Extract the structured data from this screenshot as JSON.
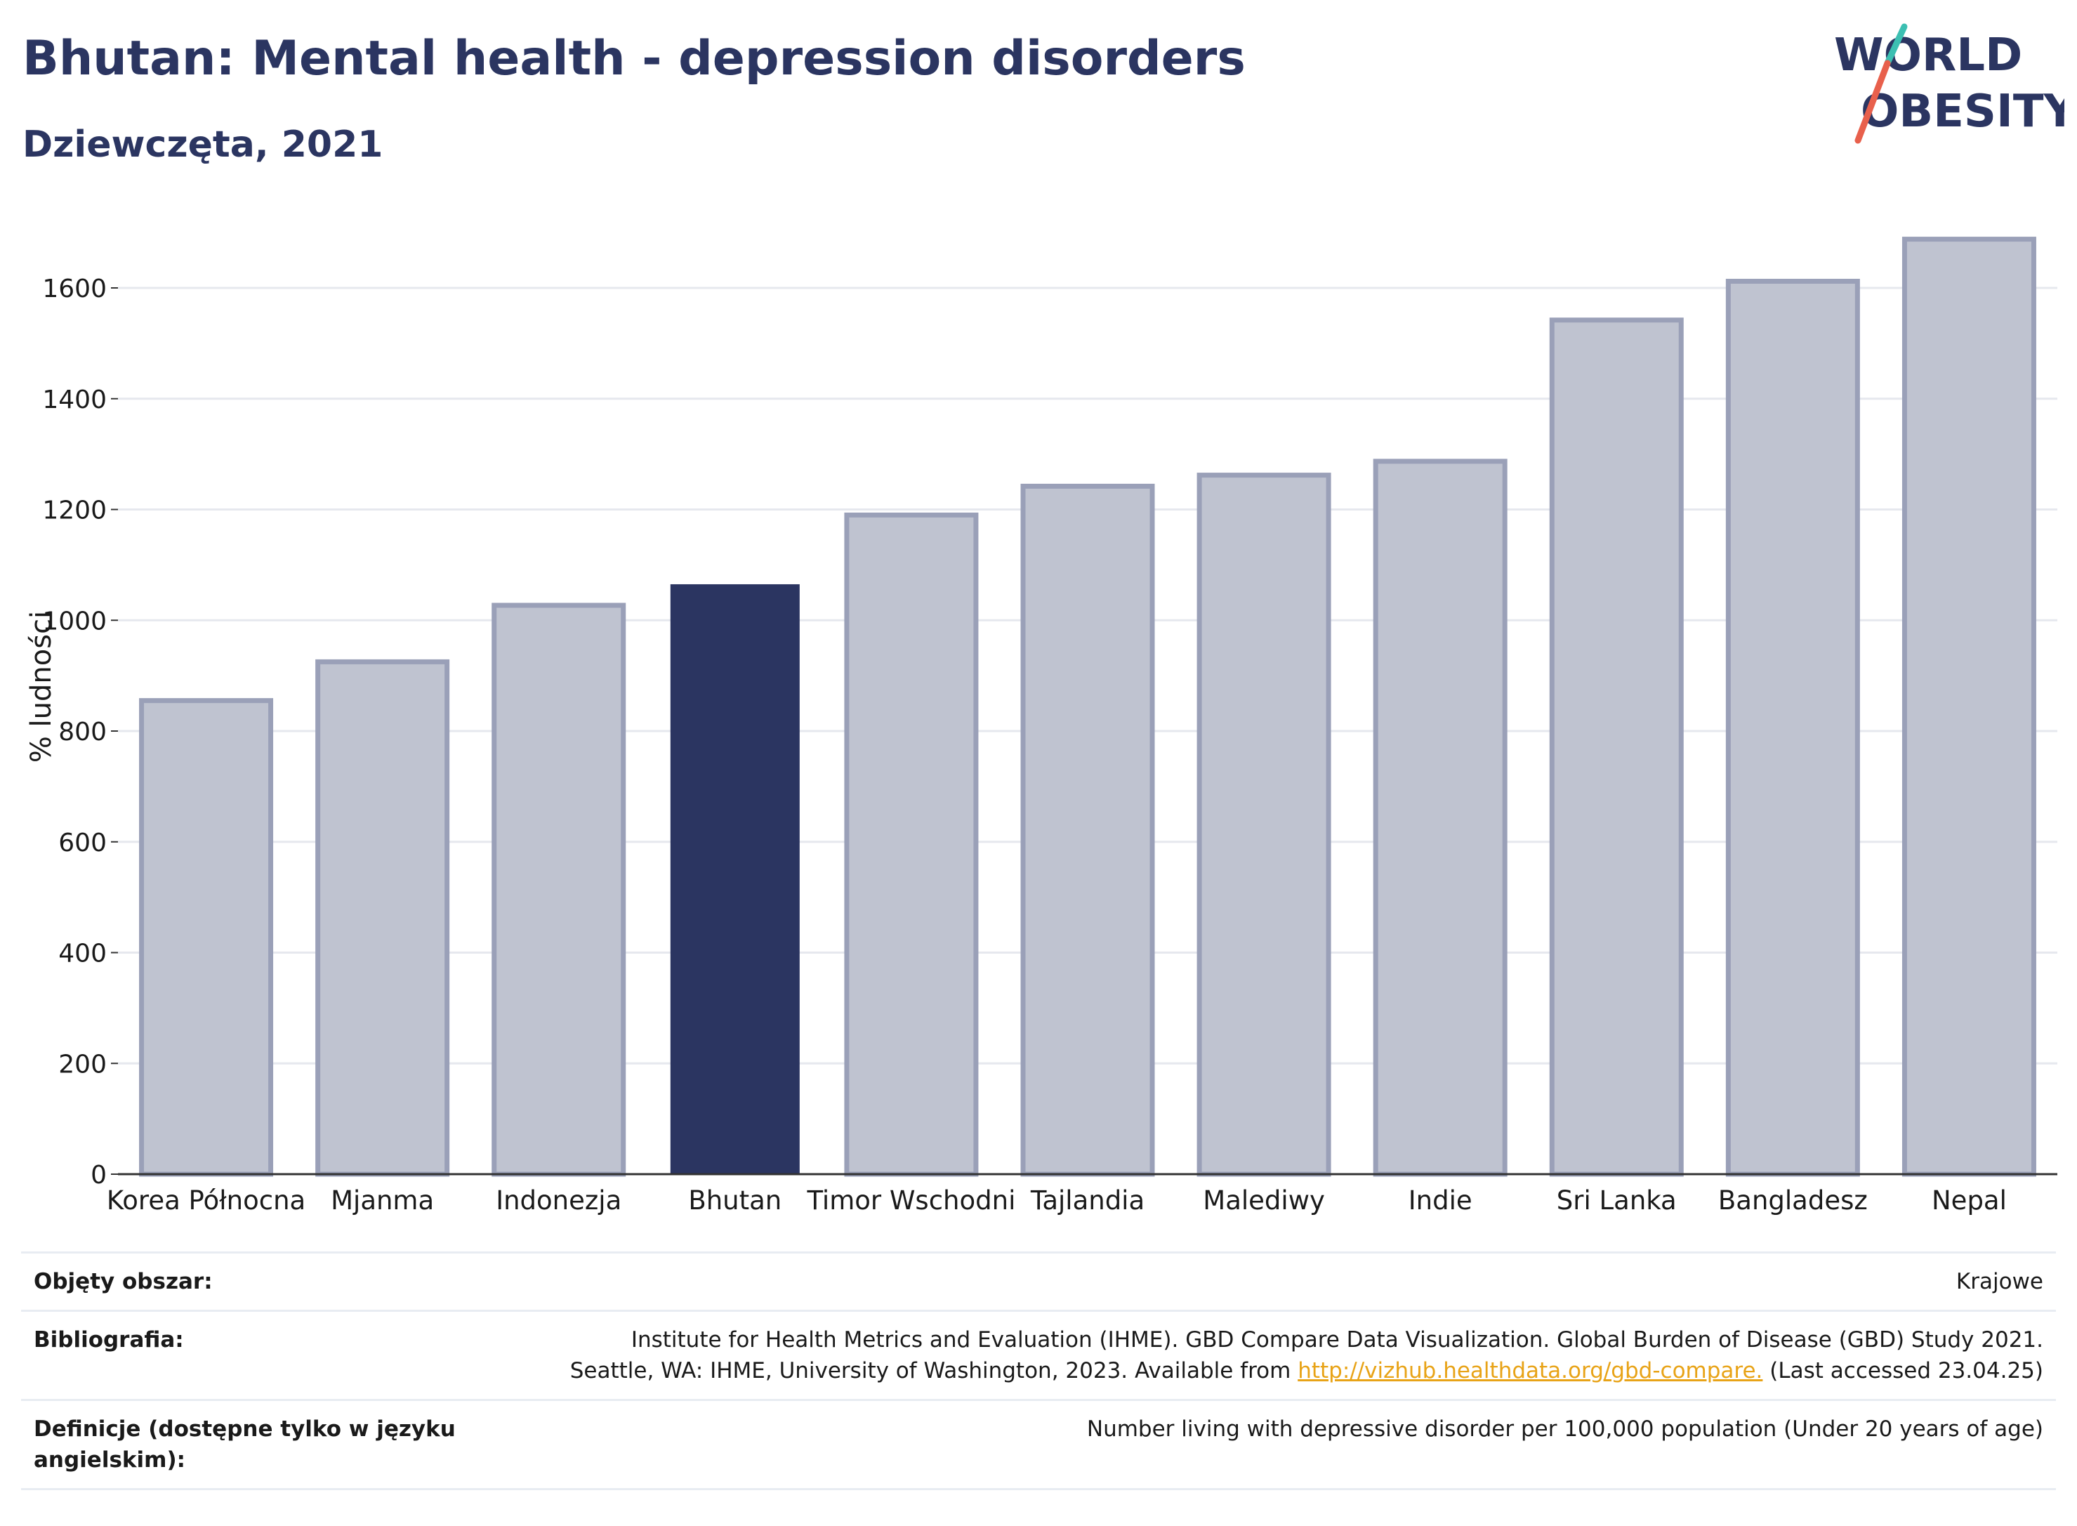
{
  "header": {
    "title": "Bhutan: Mental health - depression disorders",
    "subtitle": "Dziewczęta, 2021"
  },
  "logo": {
    "line1": "WORLD",
    "line2": "OBESITY",
    "accent_colors": [
      "#3cbfb2",
      "#e8604c"
    ],
    "text_color": "#2b3561"
  },
  "chart_data": {
    "type": "bar",
    "categories": [
      "Korea Północna",
      "Mjanma",
      "Indonezja",
      "Bhutan",
      "Timor Wschodni",
      "Tajlandia",
      "Malediwy",
      "Indie",
      "Sri Lanka",
      "Bangladesz",
      "Nepal"
    ],
    "values": [
      855,
      925,
      1027,
      1065,
      1190,
      1242,
      1262,
      1287,
      1542,
      1612,
      1688
    ],
    "highlight": "Bhutan",
    "ylabel": "% ludności",
    "xlabel": "",
    "ylim": [
      0,
      1750
    ],
    "yticks": [
      0,
      200,
      400,
      600,
      800,
      1000,
      1200,
      1400,
      1600
    ],
    "grid": true,
    "colors": {
      "highlight": "#2b3561",
      "other_fill": "#bfc3d0",
      "other_stroke": "#9aa0b8"
    }
  },
  "meta": {
    "scope_label": "Objęty obszar:",
    "scope_value": "Krajowe",
    "bib_label": "Bibliografia:",
    "bib_line1": "Institute for Health Metrics and Evaluation (IHME). GBD Compare Data Visualization. Global Burden of Disease (GBD) Study 2021.",
    "bib_line2_pre": "Seattle, WA: IHME, University of Washington, 2023. Available from",
    "bib_link": "http://vizhub.healthdata.org/gbd-compare.",
    "bib_line2_post": "(Last accessed 23.04.25)",
    "def_label": "Definicje (dostępne tylko w języku angielskim):",
    "def_value": "Number living with depressive disorder per 100,000 population (Under 20 years of age)"
  }
}
